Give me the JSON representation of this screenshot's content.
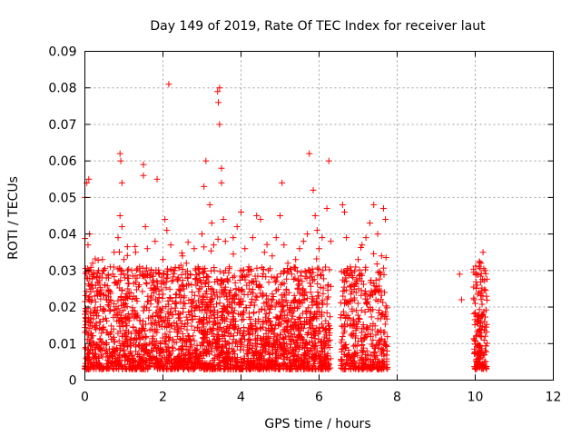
{
  "chart_data": {
    "type": "scatter",
    "title": "Day 149 of 2019, Rate Of TEC Index for receiver laut",
    "xlabel": "GPS time / hours",
    "ylabel": "ROTI / TECUs",
    "xlim": [
      0,
      12
    ],
    "ylim": [
      0,
      0.09
    ],
    "xticks": [
      0,
      2,
      4,
      6,
      8,
      10,
      12
    ],
    "yticks": [
      0,
      0.01,
      0.02,
      0.03,
      0.04,
      0.05,
      0.06,
      0.07,
      0.08,
      0.09
    ],
    "xtick_labels": [
      "0",
      "2",
      "4",
      "6",
      "8",
      "10",
      "12"
    ],
    "ytick_labels": [
      "0",
      "0.01",
      "0.02",
      "0.03",
      "0.04",
      "0.05",
      "0.06",
      "0.07",
      "0.08",
      "0.09"
    ],
    "grid": true,
    "marker": "+",
    "marker_color": "#ff0000",
    "series": [
      {
        "name": "ROTI",
        "points": [
          [
            0.0,
            0.05
          ],
          [
            0.05,
            0.054
          ],
          [
            0.1,
            0.055
          ],
          [
            0.08,
            0.037
          ],
          [
            0.12,
            0.04
          ],
          [
            0.2,
            0.032
          ],
          [
            0.3,
            0.028
          ],
          [
            0.25,
            0.023
          ],
          [
            0.35,
            0.03
          ],
          [
            0.45,
            0.033
          ],
          [
            0.55,
            0.028
          ],
          [
            0.65,
            0.031
          ],
          [
            0.75,
            0.035
          ],
          [
            0.85,
            0.039
          ],
          [
            0.9,
            0.062
          ],
          [
            0.92,
            0.06
          ],
          [
            0.95,
            0.054
          ],
          [
            0.9,
            0.045
          ],
          [
            0.95,
            0.042
          ],
          [
            1.0,
            0.033
          ],
          [
            1.1,
            0.025
          ],
          [
            1.2,
            0.03
          ],
          [
            1.3,
            0.035
          ],
          [
            1.4,
            0.031
          ],
          [
            1.5,
            0.059
          ],
          [
            1.5,
            0.056
          ],
          [
            1.55,
            0.042
          ],
          [
            1.6,
            0.036
          ],
          [
            1.7,
            0.03
          ],
          [
            1.8,
            0.038
          ],
          [
            1.85,
            0.055
          ],
          [
            1.9,
            0.029
          ],
          [
            2.0,
            0.033
          ],
          [
            2.05,
            0.044
          ],
          [
            2.1,
            0.041
          ],
          [
            2.15,
            0.081
          ],
          [
            2.2,
            0.037
          ],
          [
            2.3,
            0.03
          ],
          [
            2.4,
            0.028
          ],
          [
            2.5,
            0.034
          ],
          [
            2.6,
            0.032
          ],
          [
            2.7,
            0.029
          ],
          [
            2.8,
            0.036
          ],
          [
            2.9,
            0.031
          ],
          [
            3.0,
            0.04
          ],
          [
            3.05,
            0.053
          ],
          [
            3.1,
            0.06
          ],
          [
            3.2,
            0.048
          ],
          [
            3.25,
            0.043
          ],
          [
            3.3,
            0.037
          ],
          [
            3.4,
            0.079
          ],
          [
            3.45,
            0.08
          ],
          [
            3.42,
            0.076
          ],
          [
            3.45,
            0.07
          ],
          [
            3.5,
            0.058
          ],
          [
            3.5,
            0.054
          ],
          [
            3.55,
            0.044
          ],
          [
            3.6,
            0.038
          ],
          [
            3.7,
            0.031
          ],
          [
            3.8,
            0.039
          ],
          [
            3.9,
            0.042
          ],
          [
            4.0,
            0.046
          ],
          [
            4.1,
            0.036
          ],
          [
            4.2,
            0.031
          ],
          [
            4.3,
            0.039
          ],
          [
            4.4,
            0.045
          ],
          [
            4.5,
            0.044
          ],
          [
            4.6,
            0.035
          ],
          [
            4.7,
            0.03
          ],
          [
            4.8,
            0.034
          ],
          [
            4.9,
            0.039
          ],
          [
            5.0,
            0.045
          ],
          [
            5.05,
            0.054
          ],
          [
            5.1,
            0.037
          ],
          [
            5.2,
            0.032
          ],
          [
            5.3,
            0.029
          ],
          [
            5.4,
            0.033
          ],
          [
            5.5,
            0.036
          ],
          [
            5.6,
            0.038
          ],
          [
            5.7,
            0.04
          ],
          [
            5.75,
            0.062
          ],
          [
            5.85,
            0.052
          ],
          [
            5.9,
            0.045
          ],
          [
            5.95,
            0.041
          ],
          [
            6.0,
            0.036
          ],
          [
            6.1,
            0.03
          ],
          [
            6.2,
            0.047
          ],
          [
            6.25,
            0.06
          ],
          [
            6.3,
            0.038
          ],
          [
            6.6,
            0.048
          ],
          [
            6.65,
            0.046
          ],
          [
            6.7,
            0.039
          ],
          [
            6.8,
            0.031
          ],
          [
            6.9,
            0.026
          ],
          [
            7.0,
            0.033
          ],
          [
            7.1,
            0.037
          ],
          [
            7.2,
            0.039
          ],
          [
            7.3,
            0.043
          ],
          [
            7.4,
            0.048
          ],
          [
            7.5,
            0.04
          ],
          [
            7.6,
            0.034
          ],
          [
            7.65,
            0.047
          ],
          [
            7.7,
            0.044
          ],
          [
            9.6,
            0.029
          ],
          [
            9.65,
            0.022
          ],
          [
            10.0,
            0.021
          ],
          [
            10.05,
            0.026
          ],
          [
            10.1,
            0.031
          ],
          [
            10.15,
            0.032
          ],
          [
            10.2,
            0.035
          ],
          [
            10.25,
            0.03
          ],
          [
            10.1,
            0.024
          ],
          [
            10.2,
            0.018
          ]
        ]
      }
    ]
  }
}
